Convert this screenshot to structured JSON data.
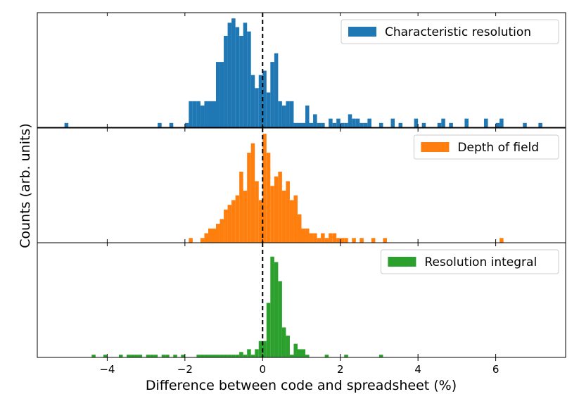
{
  "figure": {
    "xlabel": "Difference between code and spreadsheet (%)",
    "ylabel": "Counts (arb. units)",
    "xlim": [
      -5.8,
      7.8
    ],
    "xticks": [
      -4,
      -2,
      0,
      2,
      4,
      6
    ],
    "xtick_labels": [
      "−4",
      "−2",
      "0",
      "2",
      "4",
      "6"
    ],
    "reference_line_x": 0,
    "reference_line_style": "dashed",
    "bin_width": 0.1
  },
  "chart_data": [
    {
      "type": "bar",
      "series": [
        {
          "name": "Characteristic resolution",
          "color": "#1f77b4"
        }
      ],
      "legend_placement": "top-right",
      "y_ticks_shown": false,
      "ylim": [
        0,
        25
      ],
      "x": [
        -5.1,
        -2.7,
        -2.4,
        -2.0,
        -1.9,
        -1.8,
        -1.7,
        -1.6,
        -1.5,
        -1.4,
        -1.3,
        -1.2,
        -1.1,
        -1.0,
        -0.9,
        -0.8,
        -0.7,
        -0.6,
        -0.5,
        -0.4,
        -0.3,
        -0.2,
        -0.1,
        0.0,
        0.1,
        0.2,
        0.3,
        0.4,
        0.5,
        0.6,
        0.7,
        0.8,
        0.9,
        1.0,
        1.1,
        1.2,
        1.3,
        1.4,
        1.5,
        1.6,
        1.7,
        1.8,
        1.9,
        2.0,
        2.1,
        2.2,
        2.3,
        2.4,
        2.5,
        2.6,
        2.7,
        3.0,
        3.3,
        3.5,
        3.9,
        4.1,
        4.5,
        4.6,
        4.8,
        5.2,
        5.7,
        6.0,
        6.1,
        6.7,
        7.1
      ],
      "values": [
        1,
        1,
        1,
        1,
        6,
        6,
        6,
        5,
        6,
        6,
        6,
        15,
        15,
        21,
        24,
        25,
        23,
        21,
        24,
        22,
        12,
        9,
        12,
        13,
        8,
        15,
        17,
        6,
        5,
        6,
        6,
        1,
        1,
        1,
        5,
        1,
        3,
        1,
        1,
        0,
        2,
        1,
        2,
        1,
        1,
        3,
        2,
        2,
        1,
        1,
        2,
        1,
        2,
        1,
        2,
        1,
        1,
        2,
        1,
        2,
        2,
        1,
        2,
        1,
        1
      ]
    },
    {
      "type": "bar",
      "series": [
        {
          "name": "Depth of field",
          "color": "#ff7f0e"
        }
      ],
      "legend_placement": "top-right",
      "y_ticks_shown": false,
      "ylim": [
        0,
        23
      ],
      "x": [
        -1.9,
        -1.6,
        -1.5,
        -1.4,
        -1.3,
        -1.2,
        -1.1,
        -1.0,
        -0.9,
        -0.8,
        -0.7,
        -0.6,
        -0.5,
        -0.4,
        -0.3,
        -0.2,
        -0.1,
        0.0,
        0.1,
        0.2,
        0.3,
        0.4,
        0.5,
        0.6,
        0.7,
        0.8,
        0.9,
        1.0,
        1.1,
        1.2,
        1.3,
        1.4,
        1.5,
        1.6,
        1.7,
        1.8,
        1.9,
        2.0,
        2.1,
        2.3,
        2.5,
        2.8,
        3.1,
        6.1
      ],
      "values": [
        1,
        1,
        2,
        3,
        3,
        4,
        5,
        7,
        8,
        9,
        10,
        15,
        11,
        19,
        21,
        13,
        9,
        23,
        19,
        12,
        14,
        15,
        11,
        13,
        9,
        10,
        6,
        3,
        3,
        2,
        2,
        1,
        2,
        1,
        2,
        2,
        1,
        1,
        1,
        1,
        1,
        1,
        1,
        1
      ]
    },
    {
      "type": "bar",
      "series": [
        {
          "name": "Resolution integral",
          "color": "#2ca02c"
        }
      ],
      "legend_placement": "top-right",
      "y_ticks_shown": false,
      "ylim": [
        0,
        40
      ],
      "x": [
        -4.4,
        -4.1,
        -3.7,
        -3.5,
        -3.4,
        -3.3,
        -3.2,
        -3.0,
        -2.9,
        -2.8,
        -2.6,
        -2.5,
        -2.3,
        -2.1,
        -1.7,
        -1.6,
        -1.5,
        -1.4,
        -1.3,
        -1.2,
        -1.1,
        -1.0,
        -0.9,
        -0.8,
        -0.7,
        -0.6,
        -0.5,
        -0.4,
        -0.3,
        -0.2,
        -0.1,
        0.0,
        0.1,
        0.2,
        0.3,
        0.4,
        0.5,
        0.6,
        0.7,
        0.8,
        0.9,
        1.0,
        1.1,
        1.6,
        2.1,
        3.0
      ],
      "values": [
        1,
        1,
        1,
        1,
        1,
        1,
        1,
        1,
        1,
        1,
        1,
        1,
        1,
        1,
        1,
        1,
        1,
        1,
        1,
        1,
        1,
        1,
        1,
        1,
        1,
        2,
        1,
        3,
        1,
        3,
        6,
        6,
        20,
        37,
        35,
        28,
        11,
        8,
        1,
        5,
        3,
        3,
        1,
        1,
        1,
        1
      ]
    }
  ]
}
